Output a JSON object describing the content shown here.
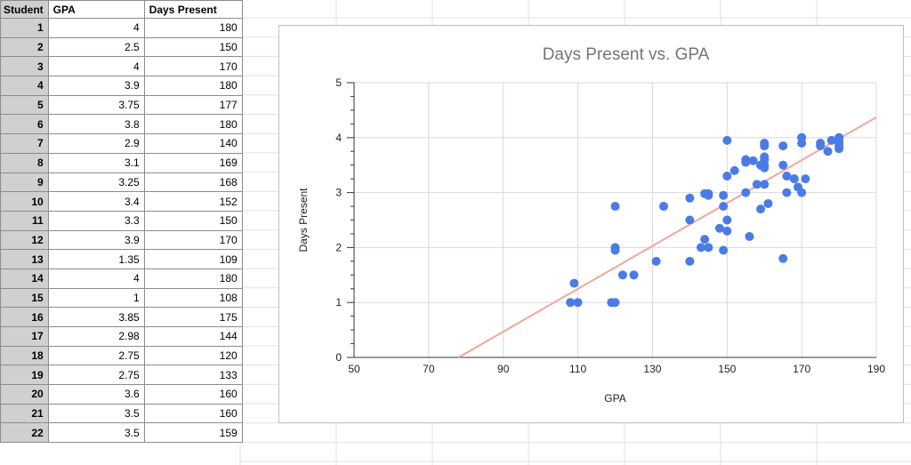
{
  "sheet": {
    "headers": [
      "Student",
      "GPA",
      "Days Present"
    ],
    "rows": [
      [
        "1",
        "4",
        "180"
      ],
      [
        "2",
        "2.5",
        "150"
      ],
      [
        "3",
        "4",
        "170"
      ],
      [
        "4",
        "3.9",
        "180"
      ],
      [
        "5",
        "3.75",
        "177"
      ],
      [
        "6",
        "3.8",
        "180"
      ],
      [
        "7",
        "2.9",
        "140"
      ],
      [
        "8",
        "3.1",
        "169"
      ],
      [
        "9",
        "3.25",
        "168"
      ],
      [
        "10",
        "3.4",
        "152"
      ],
      [
        "11",
        "3.3",
        "150"
      ],
      [
        "12",
        "3.9",
        "170"
      ],
      [
        "13",
        "1.35",
        "109"
      ],
      [
        "14",
        "4",
        "180"
      ],
      [
        "15",
        "1",
        "108"
      ],
      [
        "16",
        "3.85",
        "175"
      ],
      [
        "17",
        "2.98",
        "144"
      ],
      [
        "18",
        "2.75",
        "120"
      ],
      [
        "19",
        "2.75",
        "133"
      ],
      [
        "20",
        "3.6",
        "160"
      ],
      [
        "21",
        "3.5",
        "160"
      ],
      [
        "22",
        "3.5",
        "159"
      ]
    ]
  },
  "chart_data": {
    "type": "scatter",
    "title": "Days Present vs. GPA",
    "xlabel": "GPA",
    "ylabel": "Days Present",
    "xlim": [
      50,
      190
    ],
    "ylim": [
      0,
      5
    ],
    "xticks": [
      "50",
      "70",
      "90",
      "110",
      "130",
      "150",
      "170",
      "190"
    ],
    "yticks": [
      "0",
      "1",
      "2",
      "3",
      "4",
      "5"
    ],
    "grid": true,
    "series_color": "#4a7be6",
    "trendline_color": "#f0a59c",
    "trendline": {
      "x": [
        78,
        190
      ],
      "y": [
        0,
        4.37
      ]
    },
    "points": [
      [
        180,
        4
      ],
      [
        150,
        2.5
      ],
      [
        170,
        4
      ],
      [
        180,
        3.9
      ],
      [
        177,
        3.75
      ],
      [
        180,
        3.8
      ],
      [
        140,
        2.9
      ],
      [
        169,
        3.1
      ],
      [
        168,
        3.25
      ],
      [
        152,
        3.4
      ],
      [
        150,
        3.3
      ],
      [
        170,
        3.9
      ],
      [
        109,
        1.35
      ],
      [
        108,
        1
      ],
      [
        175,
        3.85
      ],
      [
        144,
        2.98
      ],
      [
        120,
        2.75
      ],
      [
        133,
        2.75
      ],
      [
        160,
        3.6
      ],
      [
        160,
        3.5
      ],
      [
        159,
        3.5
      ],
      [
        110,
        1
      ],
      [
        119,
        1
      ],
      [
        120,
        1
      ],
      [
        120,
        2
      ],
      [
        120,
        1.95
      ],
      [
        122,
        1.5
      ],
      [
        125,
        1.5
      ],
      [
        131,
        1.75
      ],
      [
        140,
        1.75
      ],
      [
        140,
        2.5
      ],
      [
        143,
        2
      ],
      [
        144,
        2.15
      ],
      [
        145,
        2
      ],
      [
        145,
        2.98
      ],
      [
        145,
        2.95
      ],
      [
        148,
        2.35
      ],
      [
        149,
        2.75
      ],
      [
        149,
        1.95
      ],
      [
        149,
        2.95
      ],
      [
        150,
        2.3
      ],
      [
        150,
        3.95
      ],
      [
        155,
        3
      ],
      [
        155,
        3.55
      ],
      [
        155,
        3.6
      ],
      [
        156,
        2.2
      ],
      [
        157,
        3.58
      ],
      [
        158,
        3.15
      ],
      [
        159,
        2.7
      ],
      [
        159,
        3.5
      ],
      [
        160,
        3.45
      ],
      [
        160,
        3.15
      ],
      [
        160,
        3.85
      ],
      [
        160,
        3.9
      ],
      [
        160,
        3.65
      ],
      [
        161,
        2.8
      ],
      [
        165,
        3.5
      ],
      [
        165,
        3.85
      ],
      [
        165,
        1.8
      ],
      [
        166,
        3.3
      ],
      [
        166,
        3
      ],
      [
        168,
        3.25
      ],
      [
        170,
        4
      ],
      [
        170,
        3
      ],
      [
        171,
        3.25
      ],
      [
        175,
        3.9
      ],
      [
        178,
        3.95
      ],
      [
        180,
        3.85
      ],
      [
        180,
        4
      ],
      [
        180,
        3.95
      ]
    ]
  }
}
